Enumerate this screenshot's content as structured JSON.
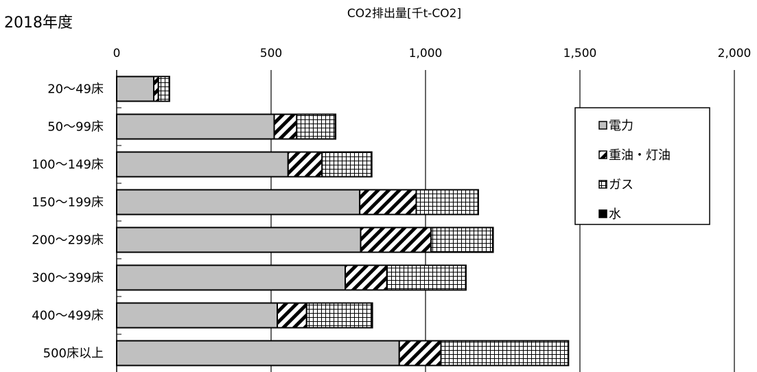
{
  "page_label": "2018年度",
  "chart_data": {
    "type": "bar",
    "orientation": "horizontal",
    "stacked": true,
    "title": "CO2排出量[千t-CO2]",
    "categories": [
      "20〜49床",
      "50〜99床",
      "100〜149床",
      "150〜199床",
      "200〜299床",
      "300〜399床",
      "400〜499床",
      "500床以上"
    ],
    "series": [
      {
        "name": "電力",
        "values": [
          120,
          510,
          555,
          787,
          790,
          740,
          520,
          915
        ],
        "fill": "gray"
      },
      {
        "name": "重油・灯油",
        "values": [
          15,
          73,
          110,
          183,
          228,
          135,
          95,
          135
        ],
        "fill": "diagonal-hatch"
      },
      {
        "name": "ガス",
        "values": [
          35,
          125,
          160,
          200,
          200,
          255,
          212,
          412
        ],
        "fill": "grid-hatch"
      },
      {
        "name": "水",
        "values": [
          1,
          1,
          1,
          1,
          1,
          1,
          1,
          1
        ],
        "fill": "black"
      }
    ],
    "xlim": [
      0,
      2000
    ],
    "xticks": [
      0,
      500,
      1000,
      1500,
      2000
    ],
    "xtick_labels": [
      "0",
      "500",
      "1,000",
      "1,500",
      "2,000"
    ],
    "grid": "vertical",
    "legend_position": "right",
    "colors": {
      "gray": "#c0c0c0",
      "black": "#000000"
    }
  }
}
